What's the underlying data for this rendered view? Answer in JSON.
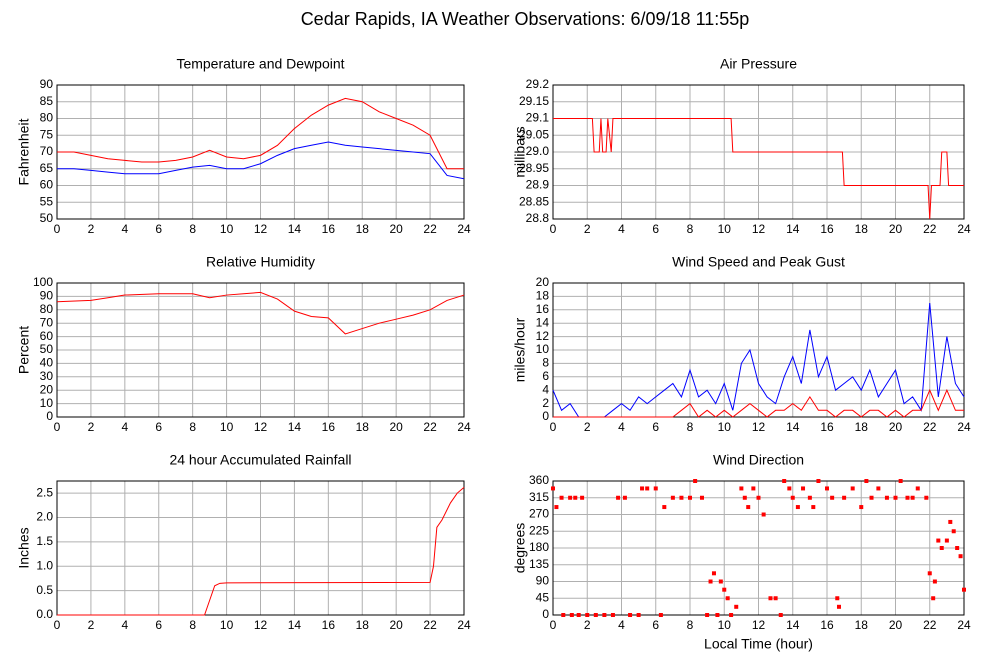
{
  "title": "Cedar Rapids, IA Weather Observations: 6/09/18 11:55p",
  "chart_data": [
    {
      "type": "line",
      "title": "Temperature and Dewpoint",
      "ylabel": "Fahrenheit",
      "x": [
        0,
        1,
        2,
        3,
        4,
        5,
        6,
        7,
        8,
        9,
        10,
        11,
        12,
        13,
        14,
        15,
        16,
        17,
        18,
        19,
        20,
        21,
        22,
        23,
        24
      ],
      "series": [
        {
          "color": "#ff0000",
          "values": [
            70,
            70,
            69,
            68,
            67.5,
            67,
            67,
            67.5,
            68.5,
            70.5,
            68.5,
            68,
            69,
            72,
            77,
            81,
            84,
            86,
            85,
            82,
            80,
            78,
            75,
            65,
            65
          ]
        },
        {
          "color": "#0000ff",
          "values": [
            65,
            65,
            64.5,
            64,
            63.5,
            63.5,
            63.5,
            64.5,
            65.5,
            66,
            65,
            65,
            66.5,
            69,
            71,
            72,
            73,
            72,
            71.5,
            71,
            70.5,
            70,
            69.5,
            63,
            62
          ]
        }
      ],
      "xlim": [
        0,
        24
      ],
      "xticks": [
        0,
        2,
        4,
        6,
        8,
        10,
        12,
        14,
        16,
        18,
        20,
        22,
        24
      ],
      "ylim": [
        50,
        90
      ],
      "yticks": [
        50,
        55,
        60,
        65,
        70,
        75,
        80,
        85,
        90
      ],
      "grid": true
    },
    {
      "type": "line",
      "title": "Air Pressure",
      "ylabel": "millibars",
      "x": [
        0,
        2.3,
        2.4,
        2.7,
        2.8,
        2.9,
        3.1,
        3.2,
        3.4,
        3.5,
        10.4,
        10.5,
        16.9,
        17,
        21.9,
        22,
        22.1,
        22.6,
        22.7,
        23,
        23.1,
        24
      ],
      "series": [
        {
          "color": "#ff0000",
          "values": [
            29.1,
            29.1,
            29.0,
            29.0,
            29.1,
            29.0,
            29.0,
            29.1,
            29.0,
            29.1,
            29.1,
            29.0,
            29.0,
            28.9,
            28.9,
            28.8,
            28.9,
            28.9,
            29.0,
            29.0,
            28.9,
            28.9
          ]
        }
      ],
      "xlim": [
        0,
        24
      ],
      "xticks": [
        0,
        2,
        4,
        6,
        8,
        10,
        12,
        14,
        16,
        18,
        20,
        22,
        24
      ],
      "ylim": [
        28.8,
        29.2
      ],
      "yticks": [
        28.8,
        28.85,
        {
          "value": 28.9,
          "label": "28.9"
        },
        28.95,
        {
          "value": 29.0,
          "label": "29.0"
        },
        29.05,
        29.1,
        29.15,
        29.2
      ],
      "grid": true
    },
    {
      "type": "line",
      "title": "Relative Humidity",
      "ylabel": "Percent",
      "x": [
        0,
        2,
        3,
        4,
        6,
        8,
        9,
        10,
        11,
        12,
        13,
        14,
        15,
        16,
        17,
        18,
        19,
        20,
        21,
        22,
        23,
        24
      ],
      "series": [
        {
          "color": "#ff0000",
          "values": [
            86,
            87,
            89,
            91,
            92,
            92,
            89,
            91,
            92,
            93,
            88,
            79,
            75,
            74,
            62,
            66,
            70,
            73,
            76,
            80,
            87,
            91
          ]
        }
      ],
      "xlim": [
        0,
        24
      ],
      "xticks": [
        0,
        2,
        4,
        6,
        8,
        10,
        12,
        14,
        16,
        18,
        20,
        22,
        24
      ],
      "ylim": [
        0,
        100
      ],
      "yticks": [
        0,
        10,
        20,
        30,
        40,
        50,
        60,
        70,
        80,
        90,
        100
      ],
      "grid": true
    },
    {
      "type": "line",
      "title": "Wind Speed and Peak Gust",
      "ylabel": "miles/hour",
      "x": [
        0,
        0.5,
        1,
        1.5,
        2,
        2.5,
        3,
        3.5,
        4,
        4.5,
        5,
        5.5,
        6,
        6.5,
        7,
        7.5,
        8,
        8.5,
        9,
        9.5,
        10,
        10.5,
        11,
        11.5,
        12,
        12.5,
        13,
        13.5,
        14,
        14.5,
        15,
        15.5,
        16,
        16.5,
        17,
        17.5,
        18,
        18.5,
        19,
        19.5,
        20,
        20.5,
        21,
        21.5,
        22,
        22.5,
        23,
        23.5,
        24
      ],
      "series": [
        {
          "color": "#0000ff",
          "values": [
            4,
            1,
            2,
            0,
            0,
            0,
            0,
            1,
            2,
            1,
            3,
            2,
            3,
            4,
            5,
            3,
            7,
            3,
            4,
            2,
            5,
            1,
            8,
            10,
            5,
            3,
            2,
            6,
            9,
            5,
            13,
            6,
            9,
            4,
            5,
            6,
            4,
            7,
            3,
            5,
            7,
            2,
            3,
            1,
            17,
            3,
            12,
            5,
            3
          ]
        },
        {
          "color": "#ff0000",
          "values": [
            0,
            0,
            0,
            0,
            0,
            0,
            0,
            0,
            0,
            0,
            0,
            0,
            0,
            0,
            0,
            1,
            2,
            0,
            1,
            0,
            1,
            0,
            1,
            2,
            1,
            0,
            1,
            1,
            2,
            1,
            3,
            1,
            1,
            0,
            1,
            1,
            0,
            1,
            1,
            0,
            1,
            0,
            1,
            1,
            4,
            1,
            4,
            1,
            1
          ]
        }
      ],
      "xlim": [
        0,
        24
      ],
      "xticks": [
        0,
        2,
        4,
        6,
        8,
        10,
        12,
        14,
        16,
        18,
        20,
        22,
        24
      ],
      "ylim": [
        0,
        20
      ],
      "yticks": [
        0,
        2,
        4,
        6,
        8,
        10,
        12,
        14,
        16,
        18,
        20
      ],
      "grid": true
    },
    {
      "type": "line",
      "title": "24 hour Accumulated Rainfall",
      "ylabel": "Inches",
      "x": [
        0,
        8.7,
        9.0,
        9.3,
        9.6,
        10,
        22,
        22.2,
        22.4,
        22.7,
        23.2,
        23.6,
        24
      ],
      "series": [
        {
          "color": "#ff0000",
          "values": [
            0,
            0,
            0.3,
            0.6,
            0.65,
            0.66,
            0.67,
            1.0,
            1.8,
            1.95,
            2.3,
            2.5,
            2.62
          ]
        }
      ],
      "xlim": [
        0,
        24
      ],
      "xticks": [
        0,
        2,
        4,
        6,
        8,
        10,
        12,
        14,
        16,
        18,
        20,
        22,
        24
      ],
      "ylim": [
        0,
        2.75
      ],
      "yticks": [
        {
          "value": 0,
          "label": "0.0"
        },
        0.5,
        {
          "value": 1,
          "label": "1.0"
        },
        1.5,
        {
          "value": 2,
          "label": "2.0"
        },
        2.5
      ],
      "grid": true
    },
    {
      "type": "scatter",
      "title": "Wind Direction",
      "ylabel": "degrees",
      "xlabel": "Local Time (hour)",
      "x": [
        0,
        0.2,
        0.5,
        1,
        1.3,
        1.7,
        0.6,
        1.1,
        1.5,
        2,
        2.5,
        3,
        3.5,
        3.8,
        4.2,
        4.5,
        5,
        5.2,
        5.5,
        6,
        6.3,
        6.5,
        7,
        7.5,
        8,
        8.3,
        8.7,
        9,
        9.2,
        9.4,
        9.6,
        9.8,
        10,
        10.2,
        10.4,
        10.7,
        11,
        11.2,
        11.4,
        11.7,
        12,
        12.3,
        12.7,
        13,
        13.3,
        13.5,
        13.8,
        14,
        14.3,
        14.6,
        15,
        15.2,
        15.5,
        16,
        16.3,
        16.6,
        16.7,
        17,
        17.5,
        18,
        18.3,
        18.6,
        19,
        19.5,
        20,
        20.3,
        20.7,
        21,
        21.3,
        21.8,
        22,
        22.2,
        22.3,
        22.5,
        22.7,
        23,
        23.2,
        23.4,
        23.6,
        23.8,
        24
      ],
      "series": [
        {
          "color": "#ff0000",
          "values": [
            340,
            290,
            315,
            315,
            315,
            315,
            0,
            0,
            0,
            0,
            0,
            0,
            0,
            315,
            315,
            0,
            0,
            340,
            340,
            340,
            0,
            290,
            315,
            315,
            315,
            360,
            315,
            0,
            90,
            112,
            0,
            90,
            68,
            45,
            0,
            22,
            340,
            315,
            290,
            340,
            315,
            270,
            45,
            45,
            0,
            360,
            340,
            315,
            290,
            340,
            315,
            290,
            360,
            340,
            315,
            45,
            22,
            315,
            340,
            290,
            360,
            315,
            340,
            315,
            315,
            360,
            315,
            315,
            340,
            315,
            112,
            45,
            90,
            200,
            180,
            200,
            250,
            225,
            180,
            158,
            68
          ]
        }
      ],
      "xlim": [
        0,
        24
      ],
      "xticks": [
        0,
        2,
        4,
        6,
        8,
        10,
        12,
        14,
        16,
        18,
        20,
        22,
        24
      ],
      "ylim": [
        0,
        360
      ],
      "yticks": [
        0,
        45,
        90,
        135,
        180,
        225,
        270,
        315,
        360
      ],
      "grid": true
    }
  ]
}
